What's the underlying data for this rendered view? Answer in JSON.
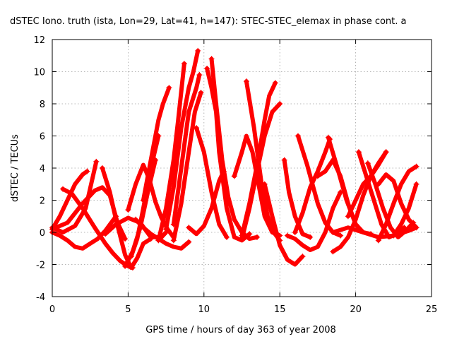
{
  "chart_data": {
    "type": "scatter",
    "title": "dSTEC Iono. truth (ista, Lon=29, Lat=41, h=147): STEC-STEC_elemax in phase cont. a",
    "xlabel": "GPS time / hours of day 363 of year 2008",
    "ylabel": "dSTEC  / TECUs",
    "xlim": [
      0,
      25
    ],
    "ylim": [
      -4,
      12
    ],
    "x_ticks": [
      0,
      5,
      10,
      15,
      20,
      25
    ],
    "y_ticks": [
      -4,
      -2,
      0,
      2,
      4,
      6,
      8,
      10,
      12
    ],
    "x_tick_labels": [
      "0",
      "5",
      "10",
      "15",
      "20",
      "25"
    ],
    "y_tick_labels": [
      "-4",
      "-2",
      "0",
      "2",
      "4",
      "6",
      "8",
      "10",
      "12"
    ],
    "grid": true,
    "marker": "+",
    "color": "#ff0000",
    "series": [
      {
        "x": [
          0.0,
          0.5,
          1.0,
          1.5,
          2.0,
          2.3
        ],
        "y": [
          0.2,
          1.0,
          2.0,
          3.0,
          3.6,
          3.8
        ]
      },
      {
        "x": [
          0.0,
          0.7,
          1.5,
          2.2,
          2.9
        ],
        "y": [
          0.3,
          0.0,
          0.4,
          1.5,
          4.4
        ]
      },
      {
        "x": [
          0.0,
          0.5,
          1.0,
          1.5,
          2.0,
          2.5,
          3.0,
          3.5,
          4.2
        ],
        "y": [
          0.0,
          -0.2,
          -0.5,
          -0.9,
          -1.0,
          -0.7,
          -0.4,
          0.1,
          1.0
        ]
      },
      {
        "x": [
          0.7,
          1.3,
          2.0,
          2.8,
          3.5,
          4.0,
          4.5,
          5.0,
          5.3
        ],
        "y": [
          2.7,
          2.4,
          1.5,
          0.3,
          -0.7,
          -1.3,
          -1.8,
          -2.1,
          -2.2
        ]
      },
      {
        "x": [
          0.0,
          1.0,
          2.0,
          2.8,
          3.3,
          3.8,
          4.3,
          4.8
        ],
        "y": [
          0.2,
          0.6,
          1.8,
          2.6,
          2.8,
          2.3,
          0.6,
          -0.4
        ]
      },
      {
        "x": [
          3.3,
          3.8,
          4.2,
          4.8,
          5.2,
          5.6,
          6.0,
          6.5
        ],
        "y": [
          4.0,
          2.5,
          0.8,
          -1.4,
          -2.2,
          -1.6,
          -0.7,
          -0.4
        ]
      },
      {
        "x": [
          3.5,
          4.2,
          5.0,
          5.8,
          6.5,
          7.2,
          7.5
        ],
        "y": [
          -0.1,
          0.5,
          0.9,
          0.6,
          -0.3,
          -0.3,
          0.0
        ]
      },
      {
        "x": [
          4.8,
          5.3,
          5.8,
          6.3,
          6.8
        ],
        "y": [
          -2.1,
          -1.2,
          0.3,
          2.5,
          4.5
        ]
      },
      {
        "x": [
          5.2,
          5.6,
          6.0,
          6.5,
          7.0
        ],
        "y": [
          -1.5,
          -0.4,
          1.5,
          4.0,
          6.0
        ]
      },
      {
        "x": [
          5.0,
          5.5,
          6.0,
          6.4,
          6.8,
          7.2,
          7.6,
          8.0
        ],
        "y": [
          1.4,
          3.0,
          4.2,
          3.3,
          1.9,
          0.9,
          0.2,
          -0.3
        ]
      },
      {
        "x": [
          5.5,
          6.0,
          6.5,
          7.0,
          7.5,
          8.0,
          8.5,
          9.0
        ],
        "y": [
          0.8,
          0.3,
          -0.1,
          -0.4,
          -0.7,
          -0.9,
          -1.0,
          -0.6
        ]
      },
      {
        "x": [
          6.0,
          6.5,
          7.0,
          7.3,
          7.7
        ],
        "y": [
          2.0,
          4.5,
          7.0,
          8.0,
          9.0
        ]
      },
      {
        "x": [
          7.0,
          7.5,
          8.0,
          8.3,
          8.7
        ],
        "y": [
          -0.5,
          1.5,
          4.5,
          7.0,
          10.5
        ]
      },
      {
        "x": [
          7.5,
          8.0,
          8.5,
          9.0,
          9.3,
          9.6
        ],
        "y": [
          0.2,
          2.8,
          6.5,
          9.0,
          10.0,
          11.3
        ]
      },
      {
        "x": [
          8.0,
          8.5,
          9.0,
          9.4,
          9.8
        ],
        "y": [
          -0.5,
          1.8,
          5.0,
          7.5,
          8.7
        ]
      },
      {
        "x": [
          8.0,
          8.5,
          9.0,
          9.5,
          9.7
        ],
        "y": [
          0.5,
          4.0,
          7.5,
          9.0,
          9.8
        ]
      },
      {
        "x": [
          9.0,
          9.5,
          10.0,
          10.5,
          11.0,
          11.3
        ],
        "y": [
          0.3,
          -0.1,
          0.4,
          1.5,
          3.2,
          3.8
        ]
      },
      {
        "x": [
          9.5,
          10.0,
          10.5,
          11.0,
          11.5
        ],
        "y": [
          6.5,
          5.0,
          2.5,
          0.5,
          -0.3
        ]
      },
      {
        "x": [
          10.2,
          10.5,
          10.8,
          11.0,
          11.5,
          12.0,
          12.5,
          13.0
        ],
        "y": [
          10.2,
          9.0,
          7.5,
          5.0,
          1.5,
          -0.3,
          -0.5,
          -0.1
        ]
      },
      {
        "x": [
          10.5,
          10.8,
          11.2,
          11.6,
          12.0,
          12.5,
          13.0,
          13.5
        ],
        "y": [
          10.8,
          8.0,
          4.5,
          2.2,
          0.8,
          0.0,
          -0.4,
          -0.3
        ]
      },
      {
        "x": [
          12.0,
          12.5,
          12.8,
          13.2,
          13.6,
          14.0,
          14.5,
          15.0
        ],
        "y": [
          3.5,
          5.0,
          6.0,
          5.0,
          3.0,
          1.0,
          0.0,
          -0.2
        ]
      },
      {
        "x": [
          12.8,
          13.3,
          13.8,
          14.2,
          14.6,
          15.0
        ],
        "y": [
          9.4,
          6.5,
          3.0,
          1.0,
          0.0,
          -0.5
        ]
      },
      {
        "x": [
          12.5,
          13.0,
          13.5,
          14.0,
          14.5,
          15.0
        ],
        "y": [
          -0.4,
          1.5,
          3.8,
          6.0,
          7.5,
          8.0
        ]
      },
      {
        "x": [
          12.5,
          13.0,
          13.5,
          14.0,
          14.3,
          14.7
        ],
        "y": [
          -0.2,
          1.8,
          4.2,
          7.0,
          8.5,
          9.3
        ]
      },
      {
        "x": [
          14.0,
          14.5,
          15.0,
          15.5,
          16.0,
          16.5
        ],
        "y": [
          3.0,
          1.0,
          -0.8,
          -1.7,
          -2.0,
          -1.5
        ]
      },
      {
        "x": [
          15.3,
          15.6,
          16.0,
          16.5,
          17.0
        ],
        "y": [
          4.5,
          2.5,
          1.0,
          -0.1,
          -0.3
        ]
      },
      {
        "x": [
          16.2,
          16.8,
          17.5,
          18.0,
          18.5,
          19.0
        ],
        "y": [
          6.0,
          4.2,
          1.8,
          0.6,
          0.0,
          -0.2
        ]
      },
      {
        "x": [
          15.5,
          16.0,
          16.5,
          17.0,
          17.5,
          18.0,
          18.5,
          19.0
        ],
        "y": [
          -0.2,
          -0.4,
          -0.8,
          -1.1,
          -0.9,
          0.0,
          1.5,
          2.5
        ]
      },
      {
        "x": [
          16.0,
          16.5,
          17.0,
          17.5,
          18.0,
          18.3
        ],
        "y": [
          0.0,
          1.2,
          2.8,
          3.8,
          5.0,
          5.8
        ]
      },
      {
        "x": [
          18.2,
          18.8,
          19.4,
          20.0,
          20.5,
          21.0
        ],
        "y": [
          5.9,
          4.0,
          2.0,
          0.5,
          0.0,
          -0.1
        ]
      },
      {
        "x": [
          17.5,
          18.0,
          18.5,
          19.0,
          19.5,
          20.0
        ],
        "y": [
          3.5,
          3.8,
          4.5,
          3.5,
          1.8,
          0.5
        ]
      },
      {
        "x": [
          18.5,
          19.0,
          19.5,
          20.0,
          20.5,
          21.0,
          21.5,
          22.0
        ],
        "y": [
          -1.2,
          -0.9,
          -0.3,
          0.8,
          2.3,
          3.5,
          4.2,
          5.0
        ]
      },
      {
        "x": [
          18.5,
          19.5,
          20.5,
          21.5,
          22.5,
          23.5,
          24.0
        ],
        "y": [
          0.0,
          0.3,
          0.0,
          -0.3,
          -0.2,
          0.1,
          0.3
        ]
      },
      {
        "x": [
          20.2,
          20.7,
          21.2,
          21.7,
          22.2,
          22.7,
          23.2
        ],
        "y": [
          5.0,
          3.5,
          2.0,
          0.5,
          -0.3,
          -0.1,
          0.3
        ]
      },
      {
        "x": [
          19.5,
          20.0,
          20.5,
          21.0,
          21.5,
          22.0
        ],
        "y": [
          1.0,
          2.0,
          3.0,
          3.5,
          4.3,
          5.0
        ]
      },
      {
        "x": [
          20.8,
          21.3,
          21.8,
          22.3,
          22.8,
          23.3,
          23.8
        ],
        "y": [
          4.3,
          3.0,
          1.5,
          0.3,
          -0.3,
          0.1,
          0.6
        ]
      },
      {
        "x": [
          21.5,
          22.0,
          22.5,
          23.0,
          23.5,
          24.0
        ],
        "y": [
          -0.5,
          0.5,
          1.8,
          3.0,
          3.8,
          4.1
        ]
      },
      {
        "x": [
          22.5,
          23.0,
          23.5,
          24.0
        ],
        "y": [
          -0.2,
          0.5,
          1.5,
          3.0
        ]
      },
      {
        "x": [
          21.5,
          22.0,
          22.5,
          23.0,
          23.5,
          24.0
        ],
        "y": [
          3.0,
          3.6,
          3.2,
          1.8,
          0.8,
          0.3
        ]
      }
    ]
  }
}
